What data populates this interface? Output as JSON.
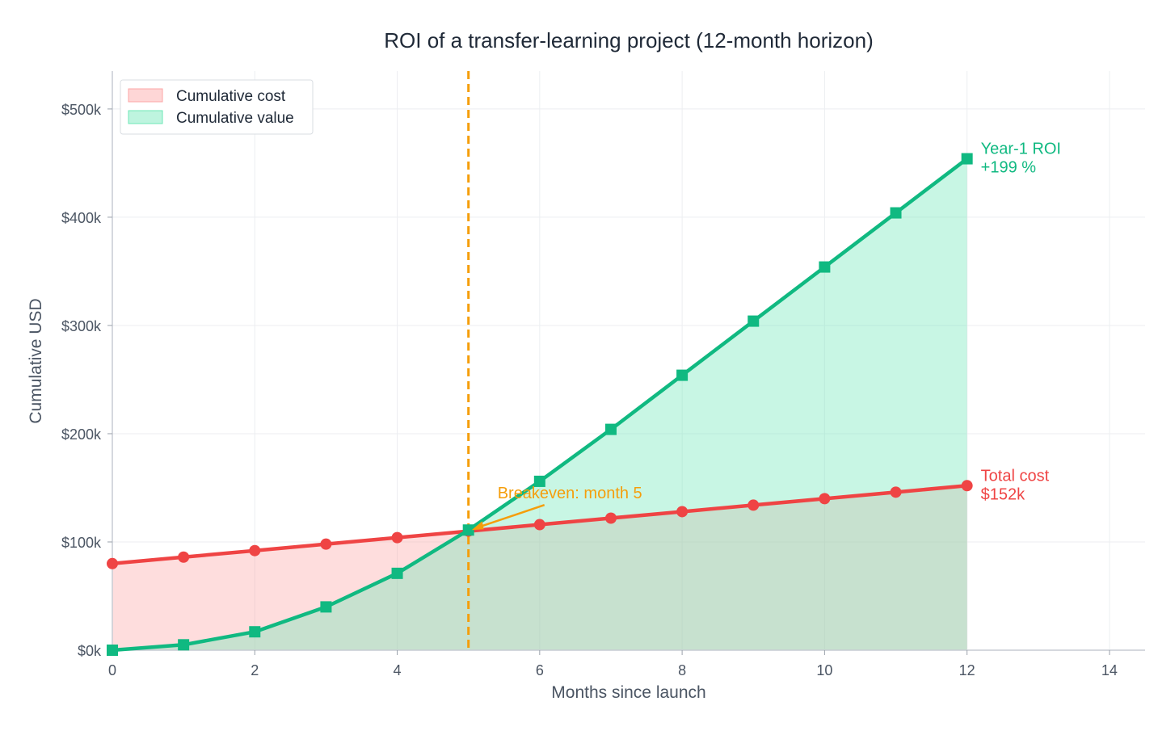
{
  "chart_data": {
    "type": "area",
    "title": "ROI of a transfer-learning project (12-month horizon)",
    "xlabel": "Months since launch",
    "ylabel": "Cumulative USD",
    "xlim": [
      0,
      14.5
    ],
    "ylim": [
      0,
      535000
    ],
    "x_ticks": [
      0,
      2,
      4,
      6,
      8,
      10,
      12,
      14
    ],
    "x_tick_labels": [
      "0",
      "2",
      "4",
      "6",
      "8",
      "10",
      "12",
      "14"
    ],
    "y_ticks": [
      0,
      100000,
      200000,
      300000,
      400000,
      500000
    ],
    "y_tick_labels": [
      "$0k",
      "$100k",
      "$200k",
      "$300k",
      "$400k",
      "$500k"
    ],
    "grid": true,
    "legend_position": "top-left",
    "x": [
      0,
      1,
      2,
      3,
      4,
      5,
      6,
      7,
      8,
      9,
      10,
      11,
      12
    ],
    "series": [
      {
        "name": "Cumulative cost",
        "color": "#ef4444",
        "fill": "#fca5a5",
        "marker": "circle",
        "values": [
          80000,
          86000,
          92000,
          98000,
          104000,
          110000,
          116000,
          122000,
          128000,
          134000,
          140000,
          146000,
          152000
        ]
      },
      {
        "name": "Cumulative value",
        "color": "#10b981",
        "fill": "#6ee7b7",
        "marker": "square",
        "values": [
          0,
          5000,
          17000,
          40000,
          71000,
          111000,
          156000,
          204000,
          254000,
          304000,
          354000,
          404000,
          454000
        ]
      }
    ],
    "breakeven": {
      "x": 5,
      "y": 111000,
      "label": "Breakeven: month 5",
      "color": "#f59e0b"
    },
    "annotations": [
      {
        "series": "Cumulative value",
        "lines": [
          "Year-1 ROI",
          "+199 %"
        ],
        "color": "#10b981"
      },
      {
        "series": "Cumulative cost",
        "lines": [
          "Total cost",
          "$152k"
        ],
        "color": "#ef4444"
      }
    ]
  }
}
